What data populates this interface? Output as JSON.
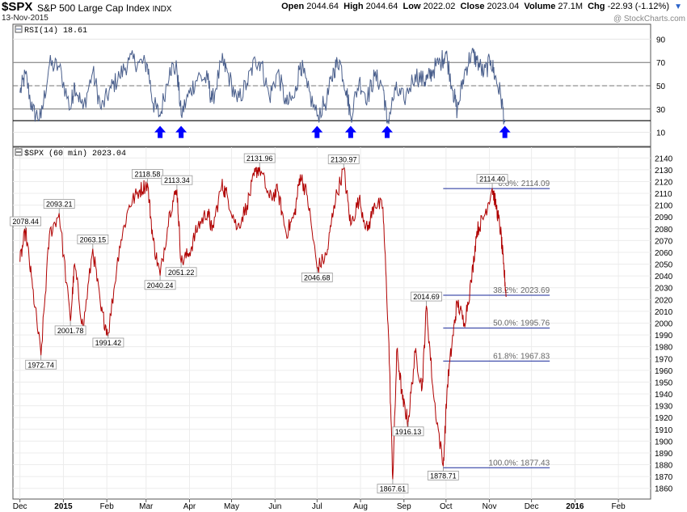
{
  "header": {
    "symbol": "$SPX",
    "description": "S&P 500 Large Cap Index",
    "exchange": "INDX",
    "date": "13-Nov-2015",
    "watermark": "@ StockCharts.com",
    "open_label": "Open",
    "open": "2044.64",
    "high_label": "High",
    "high": "2044.64",
    "low_label": "Low",
    "low": "2022.02",
    "close_label": "Close",
    "close": "2023.04",
    "volume_label": "Volume",
    "volume": "27.1M",
    "chg_label": "Chg",
    "chg": "-22.93 (-1.12%)",
    "dropdown_icon": "triangle-down-icon"
  },
  "chart_data": [
    {
      "type": "line",
      "title": "RSI(14) 18.61",
      "ylim": [
        0,
        100
      ],
      "yticks": [
        10,
        30,
        50,
        70,
        90
      ],
      "reference_lines": [
        20,
        30,
        50,
        70
      ],
      "arrow_dates": [
        "2015-03-11",
        "2015-03-26",
        "2015-07-01",
        "2015-07-25",
        "2015-08-20",
        "2015-11-12"
      ],
      "arrow_color": "#0000ff",
      "series": [
        {
          "color": "#4a5f8c",
          "points": [
            [
              "2014-12-01",
              44
            ],
            [
              "2014-12-05",
              60
            ],
            [
              "2014-12-10",
              28
            ],
            [
              "2014-12-16",
              22
            ],
            [
              "2014-12-22",
              68
            ],
            [
              "2014-12-29",
              66
            ],
            [
              "2015-01-06",
              30
            ],
            [
              "2015-01-09",
              52
            ],
            [
              "2015-01-15",
              30
            ],
            [
              "2015-01-22",
              62
            ],
            [
              "2015-01-28",
              30
            ],
            [
              "2015-02-04",
              48
            ],
            [
              "2015-02-10",
              58
            ],
            [
              "2015-02-17",
              72
            ],
            [
              "2015-02-24",
              70
            ],
            [
              "2015-03-02",
              68
            ],
            [
              "2015-03-06",
              35
            ],
            [
              "2015-03-11",
              24
            ],
            [
              "2015-03-18",
              66
            ],
            [
              "2015-03-23",
              64
            ],
            [
              "2015-03-26",
              25
            ],
            [
              "2015-04-01",
              44
            ],
            [
              "2015-04-07",
              58
            ],
            [
              "2015-04-14",
              55
            ],
            [
              "2015-04-17",
              36
            ],
            [
              "2015-04-24",
              70
            ],
            [
              "2015-04-28",
              62
            ],
            [
              "2015-05-05",
              36
            ],
            [
              "2015-05-12",
              52
            ],
            [
              "2015-05-18",
              72
            ],
            [
              "2015-05-22",
              70
            ],
            [
              "2015-05-28",
              40
            ],
            [
              "2015-06-03",
              62
            ],
            [
              "2015-06-09",
              34
            ],
            [
              "2015-06-15",
              40
            ],
            [
              "2015-06-19",
              70
            ],
            [
              "2015-06-24",
              48
            ],
            [
              "2015-07-01",
              24
            ],
            [
              "2015-07-08",
              38
            ],
            [
              "2015-07-13",
              64
            ],
            [
              "2015-07-17",
              72
            ],
            [
              "2015-07-22",
              46
            ],
            [
              "2015-07-25",
              24
            ],
            [
              "2015-07-31",
              54
            ],
            [
              "2015-08-06",
              40
            ],
            [
              "2015-08-11",
              58
            ],
            [
              "2015-08-17",
              50
            ],
            [
              "2015-08-20",
              18
            ],
            [
              "2015-08-26",
              46
            ],
            [
              "2015-09-01",
              38
            ],
            [
              "2015-09-09",
              60
            ],
            [
              "2015-09-15",
              54
            ],
            [
              "2015-09-18",
              56
            ],
            [
              "2015-09-22",
              64
            ],
            [
              "2015-09-28",
              72
            ],
            [
              "2015-10-01",
              78
            ],
            [
              "2015-10-06",
              46
            ],
            [
              "2015-10-09",
              28
            ],
            [
              "2015-10-14",
              60
            ],
            [
              "2015-10-19",
              78
            ],
            [
              "2015-10-23",
              72
            ],
            [
              "2015-10-28",
              60
            ],
            [
              "2015-11-02",
              72
            ],
            [
              "2015-11-05",
              58
            ],
            [
              "2015-11-09",
              42
            ],
            [
              "2015-11-12",
              18.61
            ]
          ]
        }
      ]
    },
    {
      "type": "line",
      "title": "$SPX (60 min) 2023.04",
      "ylim": [
        1855,
        2145
      ],
      "yticks": [
        1860,
        1870,
        1880,
        1890,
        1900,
        1910,
        1920,
        1930,
        1940,
        1950,
        1960,
        1970,
        1980,
        1990,
        2000,
        2010,
        2020,
        2030,
        2040,
        2050,
        2060,
        2070,
        2080,
        2090,
        2100,
        2110,
        2120,
        2130,
        2140
      ],
      "xlim": [
        "2014-11-26",
        "2016-02-24"
      ],
      "xticks": [
        {
          "date": "2014-12-01",
          "label": "Dec",
          "bold": false
        },
        {
          "date": "2015-01-01",
          "label": "2015",
          "bold": true
        },
        {
          "date": "2015-02-01",
          "label": "Feb",
          "bold": false
        },
        {
          "date": "2015-03-01",
          "label": "Mar",
          "bold": false
        },
        {
          "date": "2015-04-01",
          "label": "Apr",
          "bold": false
        },
        {
          "date": "2015-05-01",
          "label": "May",
          "bold": false
        },
        {
          "date": "2015-06-01",
          "label": "Jun",
          "bold": false
        },
        {
          "date": "2015-07-01",
          "label": "Jul",
          "bold": false
        },
        {
          "date": "2015-08-01",
          "label": "Aug",
          "bold": false
        },
        {
          "date": "2015-09-01",
          "label": "Sep",
          "bold": false
        },
        {
          "date": "2015-10-01",
          "label": "Oct",
          "bold": false
        },
        {
          "date": "2015-11-01",
          "label": "Nov",
          "bold": false
        },
        {
          "date": "2015-12-01",
          "label": "Dec",
          "bold": false
        },
        {
          "date": "2016-01-01",
          "label": "2016",
          "bold": true
        },
        {
          "date": "2016-02-01",
          "label": "Feb",
          "bold": false
        }
      ],
      "series": [
        {
          "color": "#b00000",
          "points": [
            [
              "2014-12-01",
              2052
            ],
            [
              "2014-12-05",
              2078.44
            ],
            [
              "2014-12-10",
              2030
            ],
            [
              "2014-12-16",
              1972.74
            ],
            [
              "2014-12-22",
              2075
            ],
            [
              "2014-12-29",
              2093.21
            ],
            [
              "2015-01-06",
              2001.78
            ],
            [
              "2015-01-09",
              2050
            ],
            [
              "2015-01-15",
              1995
            ],
            [
              "2015-01-22",
              2063.15
            ],
            [
              "2015-01-28",
              2010
            ],
            [
              "2015-02-02",
              1991.42
            ],
            [
              "2015-02-10",
              2065
            ],
            [
              "2015-02-17",
              2100
            ],
            [
              "2015-02-24",
              2112
            ],
            [
              "2015-03-02",
              2118.58
            ],
            [
              "2015-03-06",
              2070
            ],
            [
              "2015-03-11",
              2040.24
            ],
            [
              "2015-03-18",
              2095
            ],
            [
              "2015-03-23",
              2113.34
            ],
            [
              "2015-03-26",
              2051.22
            ],
            [
              "2015-04-01",
              2060
            ],
            [
              "2015-04-07",
              2082
            ],
            [
              "2015-04-14",
              2095
            ],
            [
              "2015-04-17",
              2078
            ],
            [
              "2015-04-24",
              2117
            ],
            [
              "2015-04-28",
              2108
            ],
            [
              "2015-05-05",
              2080
            ],
            [
              "2015-05-12",
              2100
            ],
            [
              "2015-05-18",
              2128
            ],
            [
              "2015-05-21",
              2131.96
            ],
            [
              "2015-05-28",
              2106
            ],
            [
              "2015-06-03",
              2112
            ],
            [
              "2015-06-09",
              2076
            ],
            [
              "2015-06-15",
              2092
            ],
            [
              "2015-06-19",
              2126
            ],
            [
              "2015-06-24",
              2108
            ],
            [
              "2015-07-01",
              2046.68
            ],
            [
              "2015-07-08",
              2058
            ],
            [
              "2015-07-13",
              2100
            ],
            [
              "2015-07-20",
              2130.97
            ],
            [
              "2015-07-25",
              2083
            ],
            [
              "2015-07-31",
              2105
            ],
            [
              "2015-08-06",
              2078
            ],
            [
              "2015-08-11",
              2102
            ],
            [
              "2015-08-17",
              2098
            ],
            [
              "2015-08-21",
              1990
            ],
            [
              "2015-08-24",
              1867.61
            ],
            [
              "2015-08-27",
              1978
            ],
            [
              "2015-08-31",
              1935
            ],
            [
              "2015-09-04",
              1916.13
            ],
            [
              "2015-09-09",
              1975
            ],
            [
              "2015-09-14",
              1945
            ],
            [
              "2015-09-17",
              2014.69
            ],
            [
              "2015-09-22",
              1940
            ],
            [
              "2015-09-29",
              1878.71
            ],
            [
              "2015-10-02",
              1948
            ],
            [
              "2015-10-06",
              1990
            ],
            [
              "2015-10-09",
              2018
            ],
            [
              "2015-10-14",
              2000
            ],
            [
              "2015-10-19",
              2035
            ],
            [
              "2015-10-23",
              2078
            ],
            [
              "2015-10-28",
              2090
            ],
            [
              "2015-11-03",
              2114.4
            ],
            [
              "2015-11-06",
              2098
            ],
            [
              "2015-11-09",
              2078
            ],
            [
              "2015-11-11",
              2050
            ],
            [
              "2015-11-13",
              2023.04
            ]
          ]
        }
      ],
      "point_labels": [
        {
          "date": "2014-12-05",
          "value": 2078.44,
          "text": "2078.44",
          "pos": "above"
        },
        {
          "date": "2014-12-16",
          "value": 1972.74,
          "text": "1972.74",
          "pos": "below"
        },
        {
          "date": "2014-12-29",
          "value": 2093.21,
          "text": "2093.21",
          "pos": "above"
        },
        {
          "date": "2015-01-06",
          "value": 2001.78,
          "text": "2001.78",
          "pos": "below"
        },
        {
          "date": "2015-01-22",
          "value": 2063.15,
          "text": "2063.15",
          "pos": "above"
        },
        {
          "date": "2015-02-02",
          "value": 1991.42,
          "text": "1991.42",
          "pos": "below"
        },
        {
          "date": "2015-03-02",
          "value": 2118.58,
          "text": "2118.58",
          "pos": "above"
        },
        {
          "date": "2015-03-11",
          "value": 2040.24,
          "text": "2040.24",
          "pos": "below"
        },
        {
          "date": "2015-03-23",
          "value": 2113.34,
          "text": "2113.34",
          "pos": "above"
        },
        {
          "date": "2015-03-26",
          "value": 2051.22,
          "text": "2051.22",
          "pos": "below"
        },
        {
          "date": "2015-05-21",
          "value": 2131.96,
          "text": "2131.96",
          "pos": "above"
        },
        {
          "date": "2015-07-01",
          "value": 2046.68,
          "text": "2046.68",
          "pos": "below"
        },
        {
          "date": "2015-07-20",
          "value": 2130.97,
          "text": "2130.97",
          "pos": "above"
        },
        {
          "date": "2015-08-24",
          "value": 1867.61,
          "text": "1867.61",
          "pos": "below"
        },
        {
          "date": "2015-09-04",
          "value": 1916.13,
          "text": "1916.13",
          "pos": "below"
        },
        {
          "date": "2015-09-17",
          "value": 2014.69,
          "text": "2014.69",
          "pos": "above"
        },
        {
          "date": "2015-09-29",
          "value": 1878.71,
          "text": "1878.71",
          "pos": "below"
        },
        {
          "date": "2015-11-03",
          "value": 2114.4,
          "text": "2114.40",
          "pos": "above"
        }
      ],
      "fibonacci_start": "2015-09-29",
      "fibonacci_end": "2015-12-14",
      "fibonacci": [
        {
          "level": "0.0%",
          "value": 2114.09,
          "text": "0.0%: 2114.09"
        },
        {
          "level": "38.2%",
          "value": 2023.69,
          "text": "38.2%: 2023.69"
        },
        {
          "level": "50.0%",
          "value": 1995.76,
          "text": "50.0%: 1995.76"
        },
        {
          "level": "61.8%",
          "value": 1967.83,
          "text": "61.8%: 1967.83"
        },
        {
          "level": "100.0%",
          "value": 1877.43,
          "text": "100.0%: 1877.43"
        }
      ],
      "fib_line_color": "#1a2a9a"
    }
  ]
}
